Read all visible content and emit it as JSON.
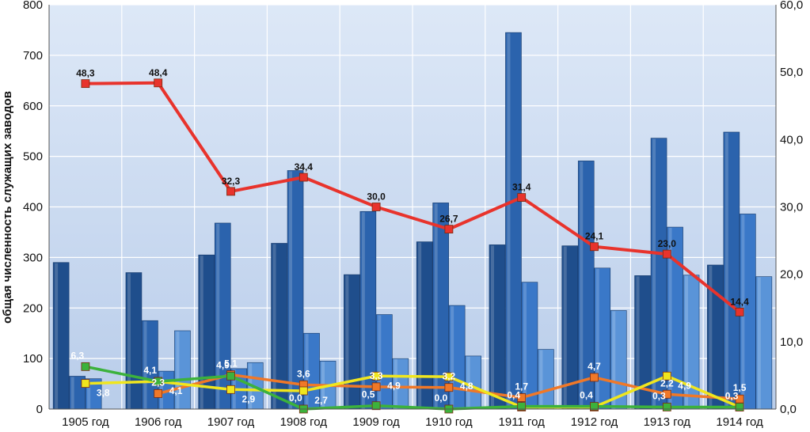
{
  "chart_data": {
    "type": "bar",
    "categories": [
      "1905 год",
      "1906 год",
      "1907 год",
      "1908 год",
      "1909 год",
      "1910 год",
      "1911 год",
      "1912 год",
      "1913 год",
      "1914 год"
    ],
    "ylabel": "общая численность служащих заводов",
    "ylim": [
      0,
      800
    ],
    "yticks": [
      "0",
      "100",
      "200",
      "300",
      "400",
      "500",
      "600",
      "700",
      "800"
    ],
    "y2lim": [
      0,
      60
    ],
    "y2ticks": [
      "0,0",
      "10,0",
      "20,0",
      "30,0",
      "40,0",
      "50,0",
      "60,0"
    ],
    "grid": true,
    "bar_series": [
      {
        "values": [
          290,
          270,
          305,
          328,
          266,
          331,
          325,
          323,
          264,
          285
        ],
        "color": "#1f4e8c"
      },
      {
        "values": [
          65,
          175,
          368,
          472,
          391,
          408,
          745,
          491,
          536,
          548
        ],
        "color": "#2b63ad"
      },
      {
        "values": [
          60,
          75,
          80,
          150,
          187,
          205,
          251,
          279,
          360,
          386
        ],
        "color": "#3a78c8"
      },
      {
        "values": [
          0,
          155,
          92,
          95,
          100,
          105,
          118,
          195,
          265,
          262
        ],
        "color": "#5a94d8"
      }
    ],
    "line_series": [
      {
        "color": "#e8332c",
        "values": [
          48.3,
          48.4,
          32.3,
          34.4,
          30.0,
          26.7,
          31.4,
          24.1,
          23.0,
          14.4
        ],
        "labels": [
          "48,3",
          "48,4",
          "32,3",
          "34,4",
          "30,0",
          "26,7",
          "31,4",
          "24,1",
          "23,0",
          "14,4"
        ]
      },
      {
        "color": "#f07828",
        "values": [
          null,
          2.3,
          5.1,
          3.6,
          3.3,
          3.2,
          1.7,
          4.7,
          2.2,
          1.5
        ],
        "labels": [
          "",
          "2,3",
          "5,1",
          "3,6",
          "3,3",
          "3,2",
          "1,7",
          "4,7",
          "2,2",
          "1,5"
        ]
      },
      {
        "color": "#f0e61e",
        "values": [
          3.8,
          4.1,
          2.9,
          2.7,
          4.9,
          4.8,
          0.3,
          0.3,
          4.9,
          0.3
        ],
        "labels": [
          "3,8",
          "4,1",
          "2,9",
          "2,7",
          "4,9",
          "4,8",
          "0,3",
          "0,3",
          "4,9",
          "0,3"
        ]
      },
      {
        "color": "#3cb23c",
        "values": [
          6.3,
          4.1,
          4.9,
          0.0,
          0.5,
          0.0,
          0.4,
          0.4,
          0.3,
          0.3
        ],
        "labels": [
          "6,3",
          "4,1",
          "4,9",
          "0,0",
          "0,5",
          "0,0",
          "0,4",
          "0,4",
          "0,3",
          "0,3"
        ]
      }
    ]
  }
}
